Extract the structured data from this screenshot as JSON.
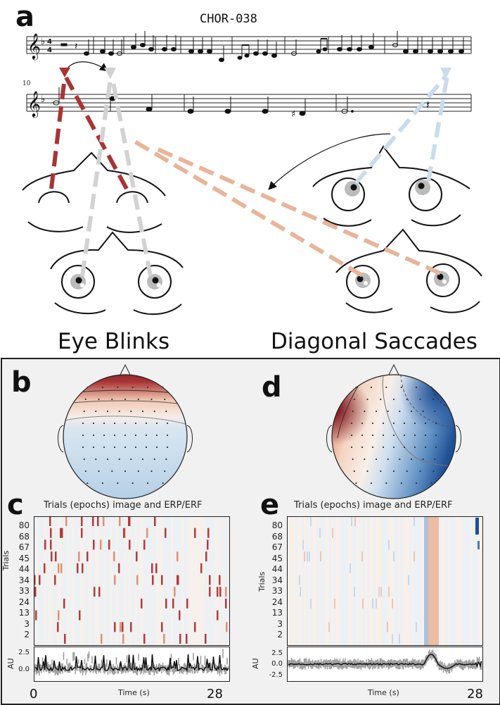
{
  "panel_a": {
    "letter": "a",
    "piece_title": "CHOR-038",
    "measure_number": "10",
    "label_left": "Eye Blinks",
    "label_right": "Diagonal Saccades"
  },
  "panel_b": {
    "letter": "b"
  },
  "panel_c": {
    "letter": "c",
    "title": "Trials (epochs) image and ERP/ERF",
    "ylabel": "Trials",
    "trial_ticks": [
      "80",
      "68",
      "67",
      "45",
      "44",
      "34",
      "33",
      "24",
      "13",
      "3",
      "2"
    ],
    "au_label": "AU",
    "au_ticks": [
      "2.5",
      "0.0"
    ],
    "xlabel": "Time (s)",
    "time_start": "0",
    "time_end": "28"
  },
  "panel_d": {
    "letter": "d"
  },
  "panel_e": {
    "letter": "e",
    "title": "Trials (epochs) image and ERP/ERF",
    "ylabel": "Trials",
    "trial_ticks": [
      "80",
      "68",
      "67",
      "45",
      "44",
      "34",
      "33",
      "24",
      "13",
      "3",
      "2"
    ],
    "au_label": "AU",
    "au_ticks": [
      "2.5",
      "0.0",
      "-2.5"
    ],
    "xlabel": "Time (s)",
    "time_end": "28"
  },
  "colors": {
    "blink_line": "#a83434",
    "blink_light": "#cfcfcf",
    "saccade_line": "#e8b49a",
    "saccade_light": "#c9dceb",
    "frame": "#222222"
  }
}
